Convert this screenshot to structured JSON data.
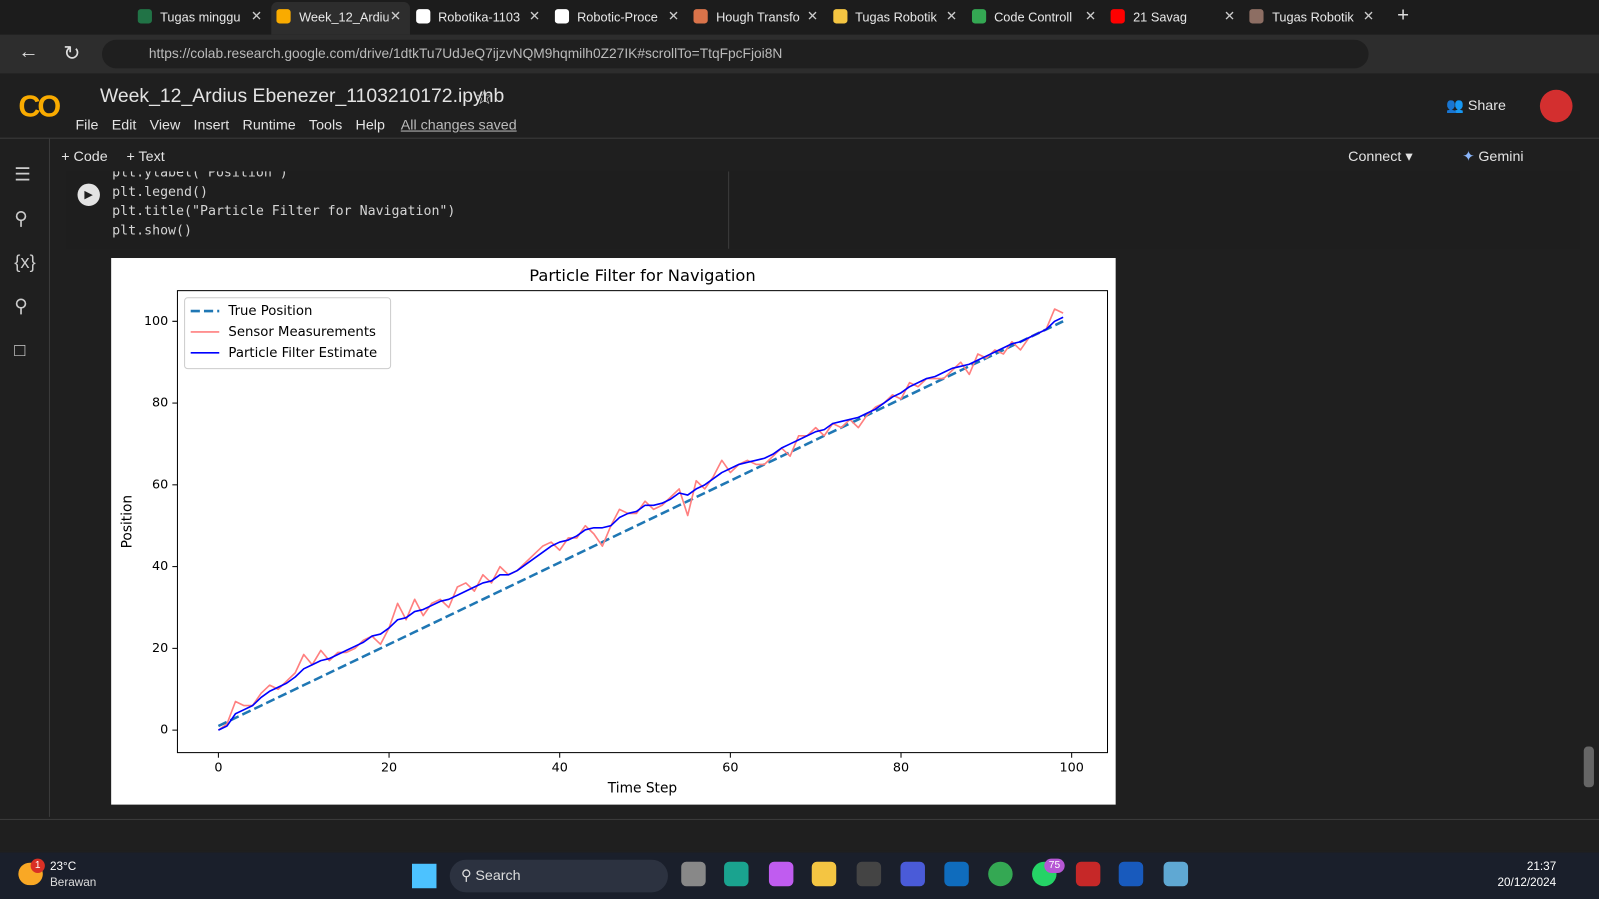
{
  "browser": {
    "tabs": [
      "Tugas minggu",
      "Week_12_Ardiu",
      "Robotika-1103",
      "Robotic-Proce",
      "Hough Transfo",
      "Tugas Robotik",
      "Code Controll",
      "21 Savag",
      "Tugas Robotik"
    ],
    "url": "https://colab.research.google.com/drive/1dtkTu7UdJeQ7ijzvNQM9hqmilh0Z27IK#scrollTo=TtqFpcFjoi8N"
  },
  "colab": {
    "title": "Week_12_Ardius Ebenezer_1103210172.ipynb",
    "menu": [
      "File",
      "Edit",
      "View",
      "Insert",
      "Runtime",
      "Tools",
      "Help"
    ],
    "saved": "All changes saved",
    "share": "Share",
    "add_code": "Code",
    "add_text": "Text",
    "connect": "Connect",
    "gemini": "Gemini",
    "code": [
      "plt.ylabel(\"Position\")",
      "plt.legend()",
      "plt.title(\"Particle Filter for Navigation\")",
      "plt.show()"
    ]
  },
  "chart_data": {
    "type": "line",
    "title": "Particle Filter for Navigation",
    "x_label": "Time Step",
    "y_label": "Position",
    "x": [
      0,
      1,
      2,
      3,
      4,
      5,
      6,
      7,
      8,
      9,
      10,
      11,
      12,
      13,
      14,
      15,
      16,
      17,
      18,
      19,
      20,
      21,
      22,
      23,
      24,
      25,
      26,
      27,
      28,
      29,
      30,
      31,
      32,
      33,
      34,
      35,
      36,
      37,
      38,
      39,
      40,
      41,
      42,
      43,
      44,
      45,
      46,
      47,
      48,
      49,
      50,
      51,
      52,
      53,
      54,
      55,
      56,
      57,
      58,
      59,
      60,
      61,
      62,
      63,
      64,
      65,
      66,
      67,
      68,
      69,
      70,
      71,
      72,
      73,
      74,
      75,
      76,
      77,
      78,
      79,
      80,
      81,
      82,
      83,
      84,
      85,
      86,
      87,
      88,
      89,
      90,
      91,
      92,
      93,
      94,
      95,
      96,
      97,
      98,
      99
    ],
    "series": [
      {
        "name": "True Position",
        "color": "#1f77b4",
        "style": "dashed",
        "values": [
          1,
          2,
          3,
          4,
          5,
          6,
          7,
          8,
          9,
          10,
          11,
          12,
          13,
          14,
          15,
          16,
          17,
          18,
          19,
          20,
          21,
          22,
          23,
          24,
          25,
          26,
          27,
          28,
          29,
          30,
          31,
          32,
          33,
          34,
          35,
          36,
          37,
          38,
          39,
          40,
          41,
          42,
          43,
          44,
          45,
          46,
          47,
          48,
          49,
          50,
          51,
          52,
          53,
          54,
          55,
          56,
          57,
          58,
          59,
          60,
          61,
          62,
          63,
          64,
          65,
          66,
          67,
          68,
          69,
          70,
          71,
          72,
          73,
          74,
          75,
          76,
          77,
          78,
          79,
          80,
          81,
          82,
          83,
          84,
          85,
          86,
          87,
          88,
          89,
          90,
          91,
          92,
          93,
          94,
          95,
          96,
          97,
          98,
          99,
          100
        ]
      },
      {
        "name": "Sensor Measurements",
        "color": "#ff7f7f",
        "style": "solid",
        "values": [
          0,
          1.5,
          7,
          6,
          6,
          9,
          11,
          10,
          12,
          14,
          18.5,
          16,
          19.5,
          17,
          19,
          19,
          20,
          22,
          23,
          21,
          25,
          31,
          27,
          32,
          28,
          31,
          32,
          30,
          35,
          36,
          34,
          38,
          36,
          40,
          38,
          39,
          41,
          43,
          45,
          46,
          44,
          47,
          47,
          50,
          48,
          45,
          50,
          54,
          53,
          53,
          56,
          54,
          55,
          57,
          59,
          52.5,
          61,
          59,
          62,
          66,
          63,
          65,
          66,
          65,
          65,
          67,
          69,
          67,
          72,
          72,
          74,
          72,
          75,
          74,
          76,
          74,
          77,
          79,
          80,
          82,
          81,
          85,
          84,
          86,
          86,
          86,
          88,
          90,
          87,
          92,
          91,
          93,
          92,
          95,
          93,
          96,
          97,
          98,
          103,
          102
        ]
      },
      {
        "name": "Particle Filter Estimate",
        "color": "#0000ff",
        "style": "solid",
        "values": [
          0,
          1,
          4,
          5,
          6,
          8,
          9.5,
          10.5,
          11.5,
          13,
          15,
          16,
          17,
          17.5,
          18.5,
          19.5,
          20.5,
          21.5,
          23,
          23.5,
          25,
          27,
          27.5,
          29,
          29.5,
          30.5,
          31.5,
          32,
          33,
          34,
          35,
          36,
          36.5,
          38,
          38,
          39,
          40.5,
          42,
          43.5,
          45,
          46,
          46.5,
          47.5,
          49,
          49.5,
          49.5,
          50,
          52,
          53,
          53.5,
          55,
          55,
          55.5,
          56.5,
          58,
          57.5,
          59,
          60,
          61.5,
          63,
          64,
          65,
          65.5,
          66,
          66.5,
          67.5,
          69,
          70,
          71,
          72,
          73,
          73.5,
          75,
          75.5,
          76,
          76.5,
          77.5,
          78.5,
          80,
          81.5,
          82.5,
          84,
          85,
          86,
          86.5,
          87.5,
          88.5,
          89,
          89.5,
          90.5,
          91.5,
          92.5,
          93.5,
          94.5,
          95,
          96,
          97,
          98,
          100,
          101
        ]
      }
    ],
    "xlim": [
      -4.8,
      104.2
    ],
    "ylim": [
      -5.5,
      107.5
    ],
    "xticks": [
      0,
      20,
      40,
      60,
      80,
      100
    ],
    "yticks": [
      0,
      20,
      40,
      60,
      80,
      100
    ],
    "legend": "upper left",
    "grid": false
  },
  "taskbar": {
    "temperature": "23°C",
    "weather": "Berawan",
    "weather_badge": "1",
    "search": "Search",
    "whatsapp_badge": "75",
    "time": "21:37",
    "date": "20/12/2024"
  }
}
